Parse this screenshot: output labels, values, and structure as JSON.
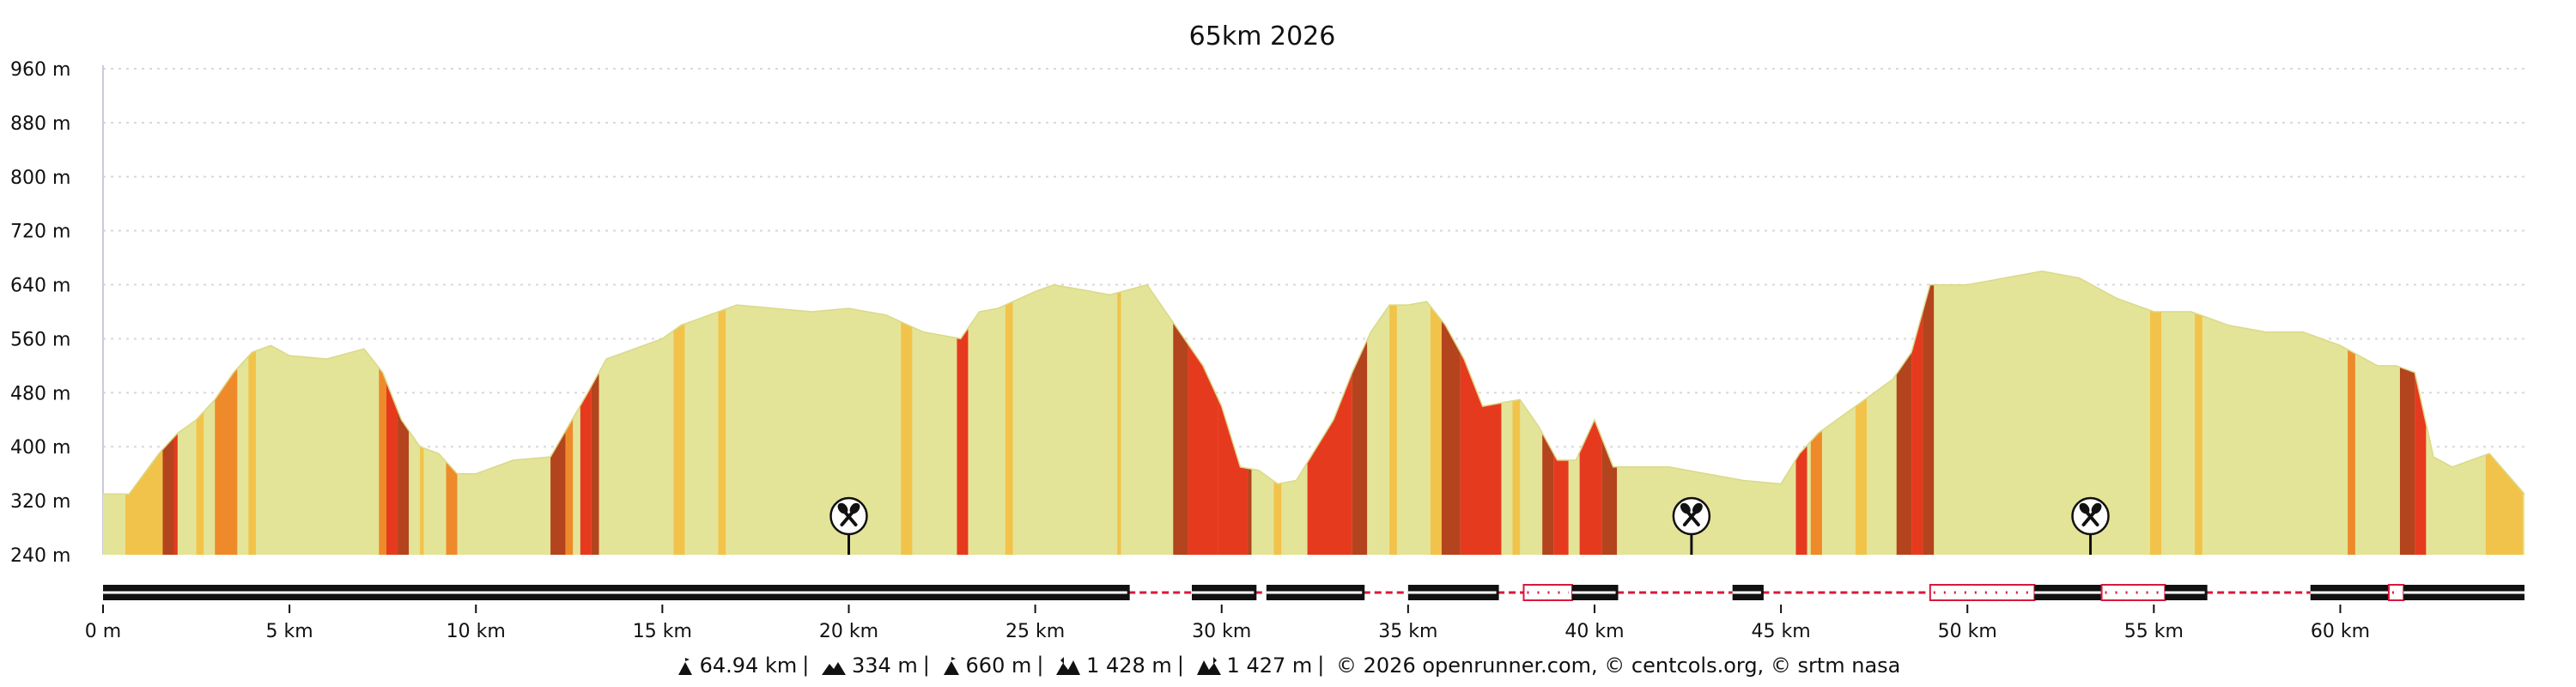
{
  "chart_data": {
    "type": "area",
    "title": "65km 2026",
    "xlabel": "",
    "ylabel": "",
    "x_unit": "km",
    "y_unit": "m",
    "xlim": [
      0,
      64.94
    ],
    "ylim": [
      240,
      960
    ],
    "x_ticks": [
      0,
      5,
      10,
      15,
      20,
      25,
      30,
      35,
      40,
      45,
      50,
      55,
      60
    ],
    "x_tick_labels": [
      "0 m",
      "5 km",
      "10 km",
      "15 km",
      "20 km",
      "25 km",
      "30 km",
      "35 km",
      "40 km",
      "45 km",
      "50 km",
      "55 km",
      "60 km"
    ],
    "y_ticks": [
      240,
      320,
      400,
      480,
      560,
      640,
      720,
      800,
      880,
      960
    ],
    "y_tick_labels": [
      "240 m",
      "320 m",
      "400 m",
      "480 m",
      "560 m",
      "640 m",
      "720 m",
      "800 m",
      "880 m",
      "960 m"
    ],
    "grid": true,
    "series": [
      {
        "x": [
          0,
          0.7,
          1.5,
          2.0,
          2.5,
          3.0,
          3.5,
          4.0,
          4.5,
          5.0,
          6.0,
          7.0,
          7.5,
          8.0,
          8.5,
          9.0,
          9.5,
          10.0,
          11.0,
          12.0,
          13.0,
          13.5,
          14.0,
          15.0,
          15.5,
          16.0,
          16.5,
          17.0,
          18.0,
          19.0,
          20.0,
          21.0,
          22.0,
          23.0,
          23.5,
          24.0,
          25.0,
          25.5,
          26.0,
          27.0,
          28.0,
          28.5,
          29.0,
          29.5,
          30.0,
          30.5,
          31.0,
          31.5,
          32.0,
          33.0,
          33.5,
          34.0,
          34.5,
          35.0,
          35.5,
          36.0,
          36.5,
          37.0,
          38.0,
          38.5,
          39.0,
          39.5,
          40.0,
          40.5,
          41.0,
          42.0,
          43.0,
          44.0,
          45.0,
          45.5,
          46.0,
          47.0,
          48.0,
          48.5,
          49.0,
          50.0,
          51.0,
          52.0,
          53.0,
          54.0,
          55.0,
          56.0,
          57.0,
          58.0,
          59.0,
          60.0,
          61.0,
          61.5,
          62.0,
          62.5,
          63.0,
          64.0,
          64.94
        ],
        "y": [
          330,
          330,
          390,
          420,
          440,
          470,
          510,
          540,
          550,
          535,
          530,
          545,
          510,
          440,
          400,
          390,
          360,
          360,
          380,
          385,
          480,
          530,
          540,
          560,
          580,
          590,
          600,
          610,
          605,
          600,
          605,
          595,
          570,
          560,
          600,
          605,
          630,
          640,
          635,
          625,
          640,
          600,
          560,
          520,
          460,
          370,
          365,
          345,
          350,
          440,
          510,
          570,
          610,
          610,
          615,
          580,
          530,
          460,
          470,
          430,
          380,
          380,
          440,
          370,
          370,
          370,
          360,
          350,
          345,
          390,
          420,
          460,
          500,
          540,
          640,
          640,
          650,
          660,
          650,
          620,
          600,
          600,
          580,
          570,
          570,
          550,
          520,
          520,
          510,
          385,
          370,
          390,
          330
        ]
      }
    ],
    "slope_bands": [
      {
        "from": 0.6,
        "to": 1.6,
        "grade": "4-6%"
      },
      {
        "from": 1.6,
        "to": 1.9,
        "grade": "8-10%"
      },
      {
        "from": 1.9,
        "to": 2.0,
        "grade": "10%+"
      },
      {
        "from": 2.5,
        "to": 2.7,
        "grade": "4-6%"
      },
      {
        "from": 3.0,
        "to": 3.6,
        "grade": "6-8%"
      },
      {
        "from": 3.9,
        "to": 4.1,
        "grade": "4-6%"
      },
      {
        "from": 7.4,
        "to": 7.6,
        "grade": "6-8%"
      },
      {
        "from": 7.6,
        "to": 7.9,
        "grade": "10%+"
      },
      {
        "from": 7.9,
        "to": 8.2,
        "grade": "8-10%"
      },
      {
        "from": 8.5,
        "to": 8.6,
        "grade": "4-6%"
      },
      {
        "from": 9.2,
        "to": 9.5,
        "grade": "6-8%"
      },
      {
        "from": 12.0,
        "to": 12.4,
        "grade": "8-10%"
      },
      {
        "from": 12.4,
        "to": 12.6,
        "grade": "6-8%"
      },
      {
        "from": 12.8,
        "to": 13.1,
        "grade": "10%+"
      },
      {
        "from": 13.1,
        "to": 13.3,
        "grade": "8-10%"
      },
      {
        "from": 15.3,
        "to": 15.6,
        "grade": "4-6%"
      },
      {
        "from": 16.5,
        "to": 16.7,
        "grade": "4-6%"
      },
      {
        "from": 21.4,
        "to": 21.7,
        "grade": "4-6%"
      },
      {
        "from": 22.9,
        "to": 23.2,
        "grade": "10%+"
      },
      {
        "from": 24.2,
        "to": 24.4,
        "grade": "4-6%"
      },
      {
        "from": 27.2,
        "to": 27.3,
        "grade": "4-6%"
      },
      {
        "from": 28.7,
        "to": 29.1,
        "grade": "8-10%"
      },
      {
        "from": 29.1,
        "to": 29.9,
        "grade": "10%+"
      },
      {
        "from": 29.9,
        "to": 30.7,
        "grade": "10%+"
      },
      {
        "from": 30.7,
        "to": 30.8,
        "grade": "8-10%"
      },
      {
        "from": 31.4,
        "to": 31.6,
        "grade": "4-6%"
      },
      {
        "from": 32.3,
        "to": 33.5,
        "grade": "10%+"
      },
      {
        "from": 33.5,
        "to": 33.9,
        "grade": "8-10%"
      },
      {
        "from": 34.5,
        "to": 34.7,
        "grade": "4-6%"
      },
      {
        "from": 35.6,
        "to": 35.9,
        "grade": "4-6%"
      },
      {
        "from": 35.9,
        "to": 36.4,
        "grade": "8-10%"
      },
      {
        "from": 36.4,
        "to": 37.5,
        "grade": "10%+"
      },
      {
        "from": 37.8,
        "to": 38.0,
        "grade": "4-6%"
      },
      {
        "from": 38.6,
        "to": 38.9,
        "grade": "8-10%"
      },
      {
        "from": 38.9,
        "to": 39.3,
        "grade": "10%+"
      },
      {
        "from": 39.6,
        "to": 40.2,
        "grade": "10%+"
      },
      {
        "from": 40.2,
        "to": 40.6,
        "grade": "8-10%"
      },
      {
        "from": 45.4,
        "to": 45.7,
        "grade": "10%+"
      },
      {
        "from": 45.8,
        "to": 46.1,
        "grade": "6-8%"
      },
      {
        "from": 47.0,
        "to": 47.3,
        "grade": "4-6%"
      },
      {
        "from": 48.1,
        "to": 48.5,
        "grade": "8-10%"
      },
      {
        "from": 48.5,
        "to": 48.8,
        "grade": "10%+"
      },
      {
        "from": 48.8,
        "to": 49.1,
        "grade": "8-10%"
      },
      {
        "from": 54.9,
        "to": 55.2,
        "grade": "4-6%"
      },
      {
        "from": 56.1,
        "to": 56.3,
        "grade": "4-6%"
      },
      {
        "from": 60.2,
        "to": 60.4,
        "grade": "6-8%"
      },
      {
        "from": 61.6,
        "to": 62.0,
        "grade": "8-10%"
      },
      {
        "from": 62.0,
        "to": 62.3,
        "grade": "10%+"
      },
      {
        "from": 63.9,
        "to": 64.9,
        "grade": "4-6%"
      }
    ],
    "grade_colors": {
      "0-4%": "#e4e498",
      "4-6%": "#f2c34a",
      "6-8%": "#ee8a2a",
      "8-10%": "#b3441e",
      "10%+": "#e63a1e"
    },
    "poi_markers": [
      {
        "x": 20.0,
        "icon": "restaurant-icon"
      },
      {
        "x": 42.6,
        "icon": "restaurant-icon"
      },
      {
        "x": 53.3,
        "icon": "restaurant-icon"
      }
    ],
    "surface_segments": [
      {
        "from": 0,
        "to": 27.5,
        "type": "road"
      },
      {
        "from": 27.5,
        "to": 29.2,
        "type": "dashed"
      },
      {
        "from": 29.2,
        "to": 30.9,
        "type": "road"
      },
      {
        "from": 30.9,
        "to": 31.2,
        "type": "dashed"
      },
      {
        "from": 31.2,
        "to": 33.8,
        "type": "road"
      },
      {
        "from": 33.8,
        "to": 35.0,
        "type": "dashed"
      },
      {
        "from": 35.0,
        "to": 37.4,
        "type": "road"
      },
      {
        "from": 37.4,
        "to": 38.1,
        "type": "dashed"
      },
      {
        "from": 38.1,
        "to": 39.4,
        "type": "dotted"
      },
      {
        "from": 39.4,
        "to": 40.6,
        "type": "road"
      },
      {
        "from": 40.6,
        "to": 43.7,
        "type": "dashed"
      },
      {
        "from": 43.7,
        "to": 44.5,
        "type": "road"
      },
      {
        "from": 44.5,
        "to": 49.0,
        "type": "dashed"
      },
      {
        "from": 49.0,
        "to": 51.8,
        "type": "dotted"
      },
      {
        "from": 51.8,
        "to": 53.6,
        "type": "road"
      },
      {
        "from": 53.6,
        "to": 55.3,
        "type": "dotted"
      },
      {
        "from": 55.3,
        "to": 56.4,
        "type": "road"
      },
      {
        "from": 56.4,
        "to": 59.2,
        "type": "dashed"
      },
      {
        "from": 59.2,
        "to": 61.3,
        "type": "road"
      },
      {
        "from": 61.3,
        "to": 61.7,
        "type": "dotted"
      },
      {
        "from": 61.7,
        "to": 64.94,
        "type": "road"
      }
    ]
  },
  "footer": {
    "distance": "64.94 km",
    "elev_min": "334 m",
    "elev_max": "660 m",
    "gain": "1 428 m",
    "loss": "1 427 m",
    "credits": "© 2026 openrunner.com, © centcols.org, © srtm nasa",
    "icons": [
      "distance-icon",
      "min-elevation-icon",
      "max-elevation-icon",
      "ascent-icon",
      "descent-icon"
    ]
  }
}
